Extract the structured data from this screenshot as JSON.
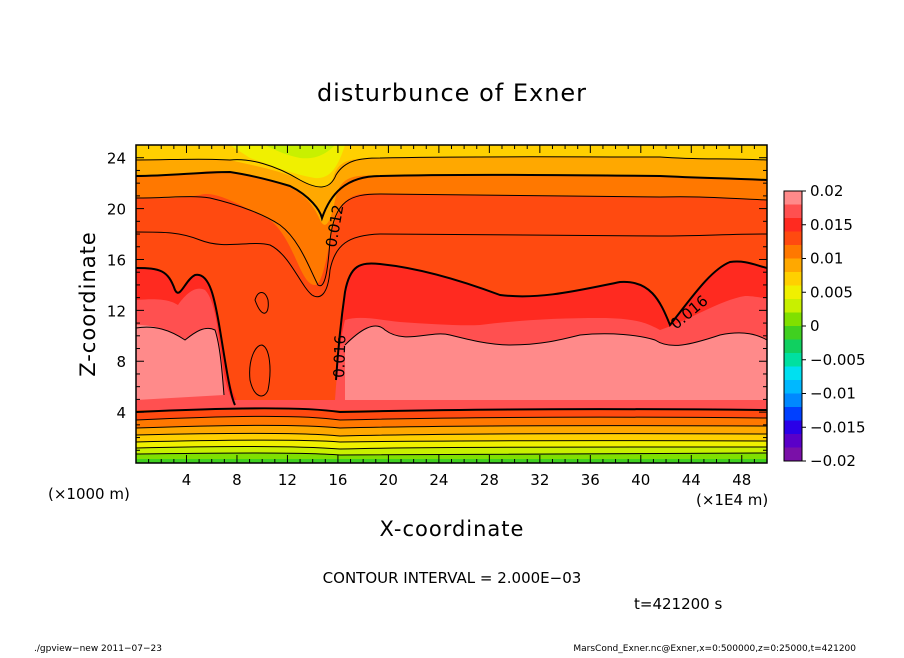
{
  "chart_data": {
    "type": "contour",
    "title": "disturbunce of Exner",
    "xlabel": "X-coordinate",
    "ylabel": "Z-coordinate",
    "x_unit": "(×1E4 m)",
    "y_unit": "(×1000 m)",
    "xlim": [
      0,
      50
    ],
    "ylim": [
      0,
      25
    ],
    "x_ticks": [
      "4",
      "8",
      "12",
      "16",
      "20",
      "24",
      "28",
      "32",
      "36",
      "40",
      "44",
      "48"
    ],
    "y_ticks": [
      "4",
      "8",
      "12",
      "16",
      "20",
      "24"
    ],
    "colorbar": {
      "levels": [
        -0.02,
        -0.018,
        -0.016,
        -0.014,
        -0.012,
        -0.01,
        -0.008,
        -0.006,
        -0.004,
        -0.002,
        0,
        0.002,
        0.004,
        0.006,
        0.008,
        0.01,
        0.012,
        0.014,
        0.016,
        0.018,
        0.02
      ],
      "labels": [
        "0.02",
        "0.015",
        "0.01",
        "0.005",
        "0",
        "−0.005",
        "−0.01",
        "−0.015",
        "−0.02"
      ],
      "colors": [
        "#7a10a8",
        "#5a00c8",
        "#2a00e8",
        "#0040ff",
        "#0088ff",
        "#00b8ff",
        "#00e0f0",
        "#00e0a0",
        "#10d060",
        "#40d020",
        "#80e000",
        "#c8f000",
        "#f0f000",
        "#ffd000",
        "#ffa800",
        "#ff7800",
        "#ff4a10",
        "#ff2a20",
        "#ff5050",
        "#ff8a8a"
      ]
    },
    "contour_labels": [
      {
        "value": "0.012"
      },
      {
        "value": "0.016"
      },
      {
        "value": "0.016"
      }
    ],
    "field_summary": {
      "surface_z_km": [
        0,
        4
      ],
      "max_band_z_km": [
        5,
        12
      ],
      "top_z_km": 25,
      "max_value_approx": 0.019,
      "min_value_approx": -0.002
    }
  },
  "info": {
    "contour_interval": "CONTOUR INTERVAL = 2.000E−03",
    "time": "t=421200 s"
  },
  "footer": {
    "left": "./gpview−new   2011−07−23",
    "right": "MarsCond_Exner.nc@Exner,x=0:500000,z=0:25000,t=421200"
  }
}
